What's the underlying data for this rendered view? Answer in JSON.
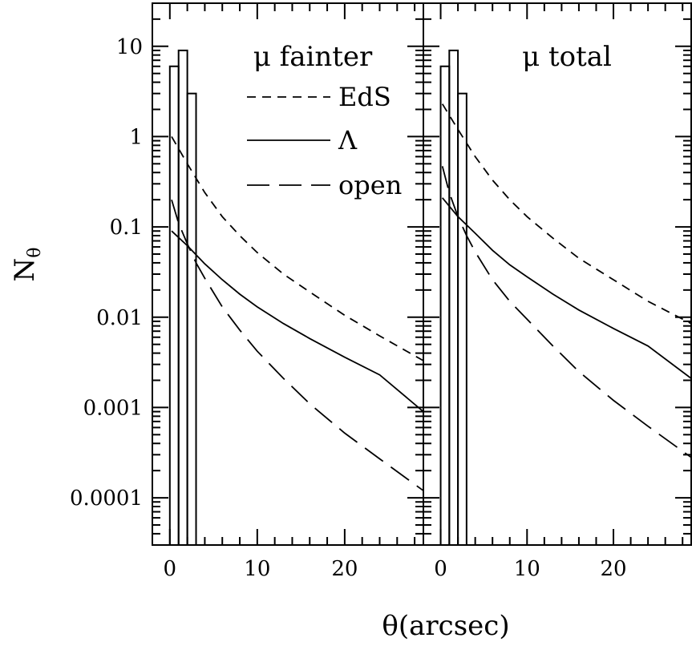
{
  "chart_data": [
    {
      "type": "line",
      "title": "μ fainter",
      "xlabel": "θ(arcsec)",
      "ylabel": "N_θ",
      "xlim": [
        -2,
        29
      ],
      "ylim": [
        3e-05,
        30
      ],
      "yscale": "log",
      "xticks": [
        "0",
        "10",
        "20"
      ],
      "yticks": [
        "0.0001",
        "0.001",
        "0.01",
        "0.1",
        "1",
        "10"
      ],
      "histogram": {
        "bins": [
          [
            0,
            1
          ],
          [
            1,
            2
          ],
          [
            2,
            3
          ]
        ],
        "counts": [
          6,
          9,
          3
        ]
      },
      "series": [
        {
          "name": "EdS",
          "style": "short-dash",
          "x": [
            0.2,
            2,
            4,
            6,
            8,
            10,
            13,
            16,
            20,
            24,
            29
          ],
          "y": [
            1.0,
            0.5,
            0.24,
            0.13,
            0.08,
            0.052,
            0.03,
            0.019,
            0.0105,
            0.0062,
            0.0033
          ]
        },
        {
          "name": "Λ",
          "style": "solid",
          "x": [
            0.2,
            2,
            4,
            6,
            8,
            10,
            13,
            16,
            20,
            24,
            29
          ],
          "y": [
            0.09,
            0.062,
            0.039,
            0.026,
            0.018,
            0.013,
            0.0085,
            0.0058,
            0.0036,
            0.0023,
            0.0009
          ]
        },
        {
          "name": "open",
          "style": "long-dash",
          "x": [
            0.2,
            1,
            2,
            3,
            4,
            6,
            8,
            10,
            13,
            16,
            20,
            24,
            29
          ],
          "y": [
            0.2,
            0.11,
            0.065,
            0.04,
            0.027,
            0.013,
            0.0072,
            0.0042,
            0.0021,
            0.0011,
            0.00052,
            0.00027,
            0.00012
          ]
        }
      ]
    },
    {
      "type": "line",
      "title": "μ total",
      "xlabel": "θ(arcsec)",
      "xlim": [
        -2,
        29
      ],
      "ylim": [
        3e-05,
        30
      ],
      "yscale": "log",
      "xticks": [
        "0",
        "10",
        "20"
      ],
      "histogram": {
        "bins": [
          [
            0,
            1
          ],
          [
            1,
            2
          ],
          [
            2,
            3
          ]
        ],
        "counts": [
          6,
          9,
          3
        ]
      },
      "series": [
        {
          "name": "EdS",
          "style": "short-dash",
          "x": [
            0.2,
            2,
            4,
            6,
            8,
            10,
            13,
            16,
            20,
            24,
            29
          ],
          "y": [
            2.3,
            1.2,
            0.6,
            0.33,
            0.2,
            0.13,
            0.075,
            0.045,
            0.026,
            0.015,
            0.0085
          ]
        },
        {
          "name": "Λ",
          "style": "solid",
          "x": [
            0.2,
            2,
            4,
            6,
            8,
            10,
            13,
            16,
            20,
            24,
            29
          ],
          "y": [
            0.21,
            0.13,
            0.085,
            0.055,
            0.038,
            0.028,
            0.018,
            0.012,
            0.0075,
            0.0048,
            0.0021
          ]
        },
        {
          "name": "open",
          "style": "long-dash",
          "x": [
            0.2,
            1,
            2,
            3,
            4,
            6,
            8,
            10,
            13,
            16,
            20,
            24,
            29
          ],
          "y": [
            0.47,
            0.24,
            0.13,
            0.08,
            0.053,
            0.026,
            0.015,
            0.0095,
            0.0048,
            0.0025,
            0.0012,
            0.00062,
            0.00028
          ]
        }
      ]
    }
  ]
}
